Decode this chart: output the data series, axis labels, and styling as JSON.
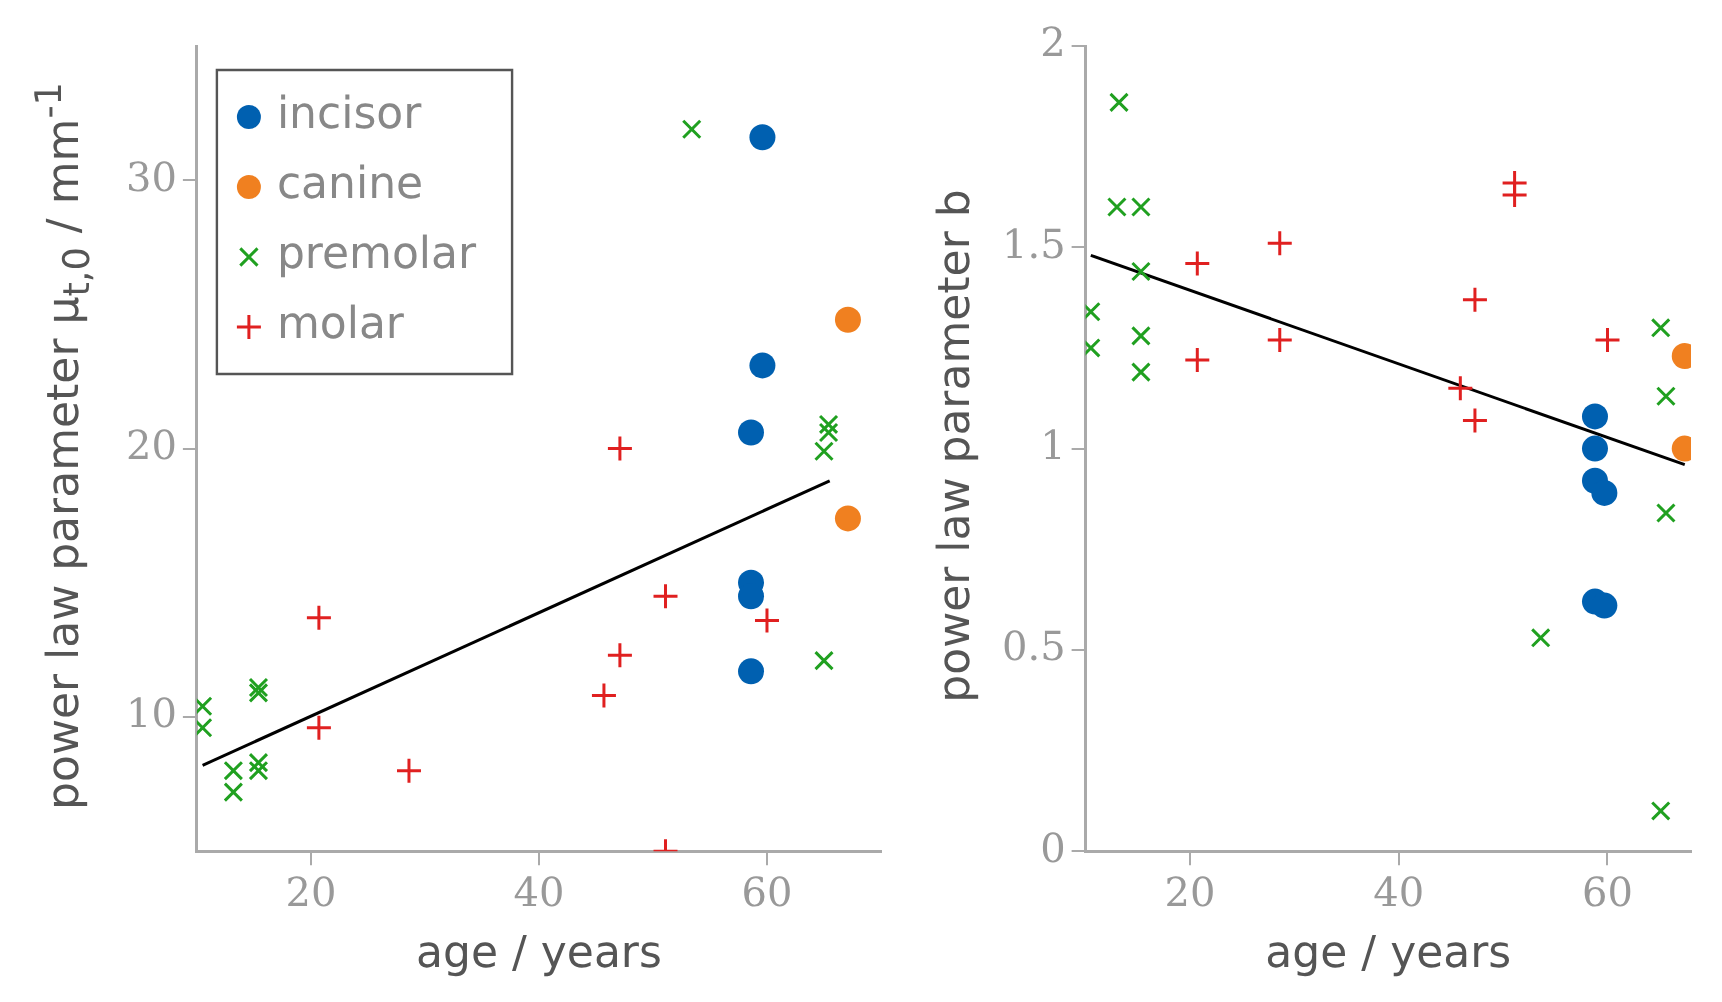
{
  "chart_data": [
    {
      "type": "scatter",
      "xlabel": "age / years",
      "ylabel": "power law parameter μ$_{t,0}$ / mm$^{-1}$",
      "xlim": [
        10,
        70
      ],
      "ylim": [
        5,
        35
      ],
      "xticks": [
        20,
        40,
        60
      ],
      "yticks": [
        10,
        20,
        30
      ],
      "grid": false,
      "legend": "top left",
      "series": [
        {
          "name": "incisor",
          "color": "#0060b0",
          "marker": "circle",
          "x": [
            59.6,
            59.6,
            58.6,
            58.6,
            58.6,
            58.6
          ],
          "values": [
            31.6,
            23.1,
            20.6,
            15.0,
            14.5,
            11.7
          ]
        },
        {
          "name": "canine",
          "color": "#f08020",
          "marker": "circle",
          "x": [
            67.1,
            67.1
          ],
          "values": [
            24.8,
            17.4
          ]
        },
        {
          "name": "premolar",
          "color": "#20a020",
          "marker": "x",
          "x": [
            53.4,
            65.4,
            65.4,
            65,
            65,
            10.5,
            10.5,
            13.2,
            13.2,
            15.4,
            15.4,
            15.4,
            15.4
          ],
          "values": [
            31.9,
            20.9,
            20.6,
            19.9,
            12.1,
            10.4,
            9.6,
            8.0,
            7.2,
            11.1,
            10.9,
            8.3,
            8.0
          ]
        },
        {
          "name": "molar",
          "color": "#e02020",
          "marker": "cross",
          "x": [
            20.7,
            20.7,
            28.6,
            51.1,
            47.1,
            45.7,
            51.1,
            60,
            47.1
          ],
          "values": [
            13.7,
            9.6,
            8.0,
            14.5,
            12.3,
            10.8,
            5.0,
            13.6,
            20.0
          ]
        },
        {
          "type": "line",
          "color": "#000000",
          "marker": "none",
          "line_style": "solid",
          "x": [
            10.5,
            65.5
          ],
          "values": [
            8.2,
            18.8
          ]
        }
      ]
    },
    {
      "type": "scatter",
      "xlabel": "age / years",
      "ylabel": "power law parameter b",
      "xlim": [
        10,
        68
      ],
      "ylim": [
        0,
        2
      ],
      "xticks": [
        20,
        40,
        60
      ],
      "yticks": [
        0,
        0.5,
        1,
        1.5,
        2
      ],
      "grid": false,
      "series": [
        {
          "color": "#0060b0",
          "marker": "circle",
          "x": [
            58.8,
            58.8,
            58.8,
            59.7,
            58.8,
            59.7
          ],
          "values": [
            1.08,
            1.0,
            0.92,
            0.89,
            0.62,
            0.61
          ]
        },
        {
          "color": "#f08020",
          "marker": "circle",
          "x": [
            67.4,
            67.4
          ],
          "values": [
            1.23,
            1.0
          ]
        },
        {
          "color": "#20a020",
          "marker": "x",
          "x": [
            13.2,
            13.0,
            15.3,
            15.3,
            10.5,
            10.5,
            15.3,
            15.3,
            65.1,
            65.6,
            65.6,
            53.6,
            65.1
          ],
          "values": [
            1.86,
            1.6,
            1.6,
            1.44,
            1.34,
            1.25,
            1.28,
            1.19,
            1.3,
            1.13,
            0.84,
            0.53,
            0.1
          ]
        },
        {
          "color": "#e02020",
          "marker": "cross",
          "x": [
            20.7,
            20.7,
            28.6,
            28.6,
            51.1,
            51.1,
            47.3,
            45.9,
            47.3,
            60.0
          ],
          "values": [
            1.46,
            1.22,
            1.51,
            1.27,
            1.66,
            1.63,
            1.37,
            1.15,
            1.07,
            1.27
          ]
        },
        {
          "type": "line",
          "color": "#000000",
          "marker": "none",
          "line_style": "solid",
          "x": [
            10.5,
            67.4
          ],
          "values": [
            1.48,
            0.96
          ]
        }
      ]
    }
  ]
}
